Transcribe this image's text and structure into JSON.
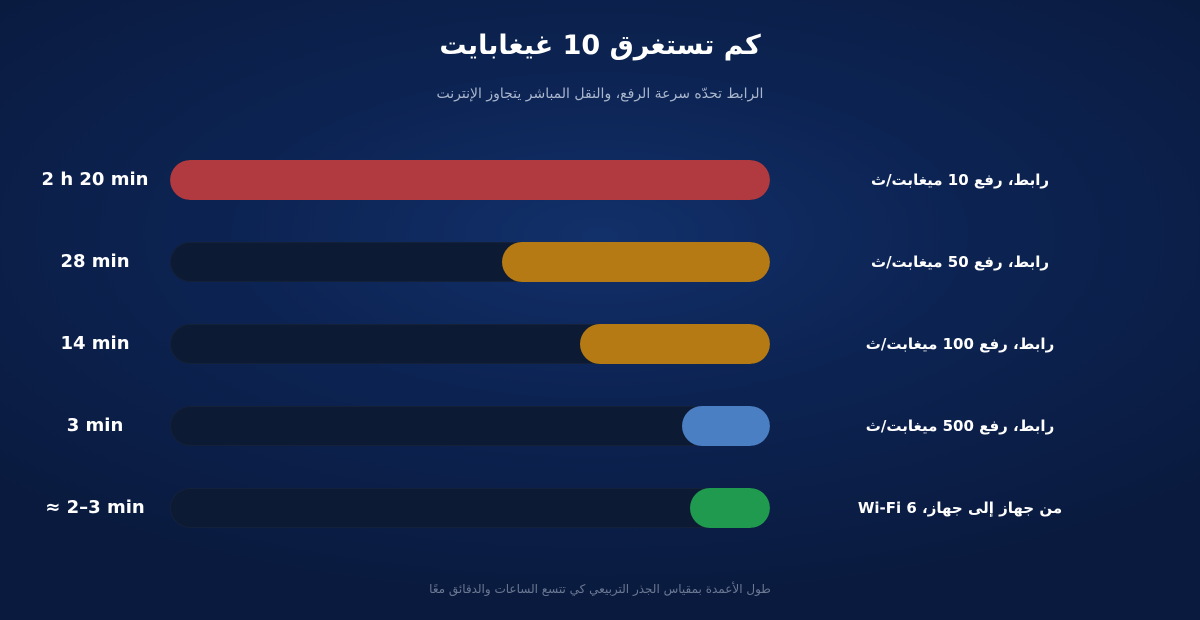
{
  "chart_data": {
    "type": "bar",
    "orientation": "horizontal",
    "title": "كم تستغرق 10 غيغابايت",
    "subtitle": "الرابط تحدّه سرعة الرفع، والنقل المباشر يتجاوز الإنترنت",
    "footnote": "طول الأعمدة بمقياس الجذر التربيعي كي تتسع الساعات والدقائق معًا",
    "scale": "sqrt",
    "unit": "min",
    "categories": [
      "رابط، رفع 10 ميغابت/ث",
      "رابط، رفع 50 ميغابت/ث",
      "رابط، رفع 100 ميغابت/ث",
      "رابط، رفع 500 ميغابت/ث",
      "من جهاز إلى جهاز، Wi‑Fi 6"
    ],
    "values": [
      140,
      28,
      14,
      3,
      2.5
    ],
    "value_labels": [
      "2 h 20 min",
      "28 min",
      "14 min",
      "3 min",
      "≈ 2–3 min"
    ],
    "colors": [
      "#b13a40",
      "#b57a14",
      "#b57a14",
      "#4a7fc4",
      "#1f9a4e"
    ]
  }
}
